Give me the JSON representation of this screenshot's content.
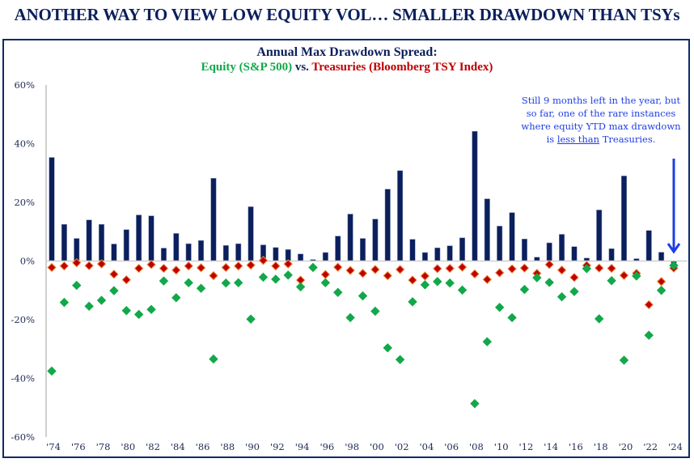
{
  "page": {
    "title": "ANOTHER WAY TO VIEW LOW EQUITY VOL… SMALLER DRAWDOWN THAN TSYs"
  },
  "chart_data": {
    "type": "bar",
    "title": "Annual Max Drawdown Spread:",
    "subtitle_parts": {
      "equity": "Equity (S&P 500)",
      "vs": " vs. ",
      "treasuries": "Treasuries (Bloomberg TSY Index)"
    },
    "xlabel": "",
    "ylabel": "",
    "ylim": [
      -60,
      60
    ],
    "yticks": [
      60,
      40,
      20,
      0,
      -20,
      -40,
      -60
    ],
    "ytick_labels": [
      "60%",
      "40%",
      "20%",
      "0%",
      "-20%",
      "-40%",
      "-60%"
    ],
    "x": [
      1974,
      1975,
      1976,
      1977,
      1978,
      1979,
      1980,
      1981,
      1982,
      1983,
      1984,
      1985,
      1986,
      1987,
      1988,
      1989,
      1990,
      1991,
      1992,
      1993,
      1994,
      1995,
      1996,
      1997,
      1998,
      1999,
      2000,
      2001,
      2002,
      2003,
      2004,
      2005,
      2006,
      2007,
      2008,
      2009,
      2010,
      2011,
      2012,
      2013,
      2014,
      2015,
      2016,
      2017,
      2018,
      2019,
      2020,
      2021,
      2022,
      2023,
      2024
    ],
    "xtick_labels": [
      "'74",
      "'76",
      "'78",
      "'80",
      "'82",
      "'84",
      "'86",
      "'88",
      "'90",
      "'92",
      "'94",
      "'96",
      "'98",
      "'00",
      "'02",
      "'04",
      "'06",
      "'08",
      "'10",
      "'12",
      "'14",
      "'16",
      "'18",
      "'20",
      "'22",
      "'24"
    ],
    "grid": false,
    "legend": "none",
    "series": [
      {
        "name": "Max Drawdown Spread",
        "type": "bar",
        "color": "#0b1f5c",
        "values": [
          35.3,
          12.5,
          7.7,
          14.0,
          12.5,
          5.8,
          10.7,
          15.7,
          15.4,
          4.4,
          9.4,
          5.9,
          7.0,
          28.2,
          5.3,
          5.9,
          18.5,
          5.5,
          4.6,
          3.9,
          2.4,
          0.5,
          2.9,
          8.5,
          16.0,
          7.7,
          14.3,
          24.5,
          30.8,
          7.4,
          2.9,
          4.5,
          5.2,
          7.9,
          44.2,
          21.2,
          11.9,
          16.5,
          7.5,
          1.3,
          6.2,
          9.1,
          4.9,
          1.0,
          17.4,
          4.2,
          29.0,
          0.8,
          10.4,
          3.0,
          -0.8
        ]
      },
      {
        "name": "Equity (S&P 500)",
        "type": "scatter",
        "marker": "diamond",
        "color": "#12a84a",
        "values": [
          -37.5,
          -14.1,
          -8.3,
          -15.4,
          -13.4,
          -10.1,
          -16.9,
          -18.2,
          -16.5,
          -6.8,
          -12.5,
          -7.4,
          -9.3,
          -33.4,
          -7.5,
          -7.4,
          -19.8,
          -5.5,
          -6.2,
          -4.8,
          -8.8,
          -2.2,
          -7.4,
          -10.7,
          -19.3,
          -11.9,
          -17.1,
          -29.6,
          -33.6,
          -13.9,
          -8.1,
          -7.0,
          -7.5,
          -9.9,
          -48.6,
          -27.5,
          -15.8,
          -19.3,
          -9.7,
          -5.7,
          -7.3,
          -12.2,
          -10.4,
          -2.6,
          -19.7,
          -6.7,
          -33.8,
          -5.1,
          -25.3,
          -10.0,
          -1.5
        ]
      },
      {
        "name": "Treasuries (Bloomberg TSY Index)",
        "type": "scatter",
        "marker": "diamond",
        "color": "#c00000",
        "values": [
          -2.2,
          -1.7,
          -0.6,
          -1.6,
          -1.0,
          -4.5,
          -6.4,
          -2.5,
          -1.2,
          -2.5,
          -3.1,
          -1.7,
          -2.3,
          -5.0,
          -2.2,
          -1.7,
          -1.4,
          0.2,
          -1.7,
          -1.0,
          -6.5,
          -2.2,
          -4.6,
          -2.1,
          -3.2,
          -4.2,
          -2.9,
          -5.0,
          -2.9,
          -6.5,
          -5.1,
          -2.6,
          -2.5,
          -2.1,
          -4.4,
          -6.3,
          -4.0,
          -2.7,
          -2.4,
          -4.2,
          -1.2,
          -3.1,
          -5.6,
          -1.5,
          -2.4,
          -2.5,
          -4.9,
          -4.2,
          -14.9,
          -7.0,
          -2.4
        ]
      }
    ],
    "annotation": {
      "line1": "Still 9 months left in the year, but",
      "line2": "so far, one of the rare instances",
      "line3": "where equity YTD max drawdown",
      "line4_pre": "is ",
      "line4_underlined": "less than",
      "line4_post": " Treasuries.",
      "color": "#1f3ee6",
      "points_to": 2024
    }
  }
}
